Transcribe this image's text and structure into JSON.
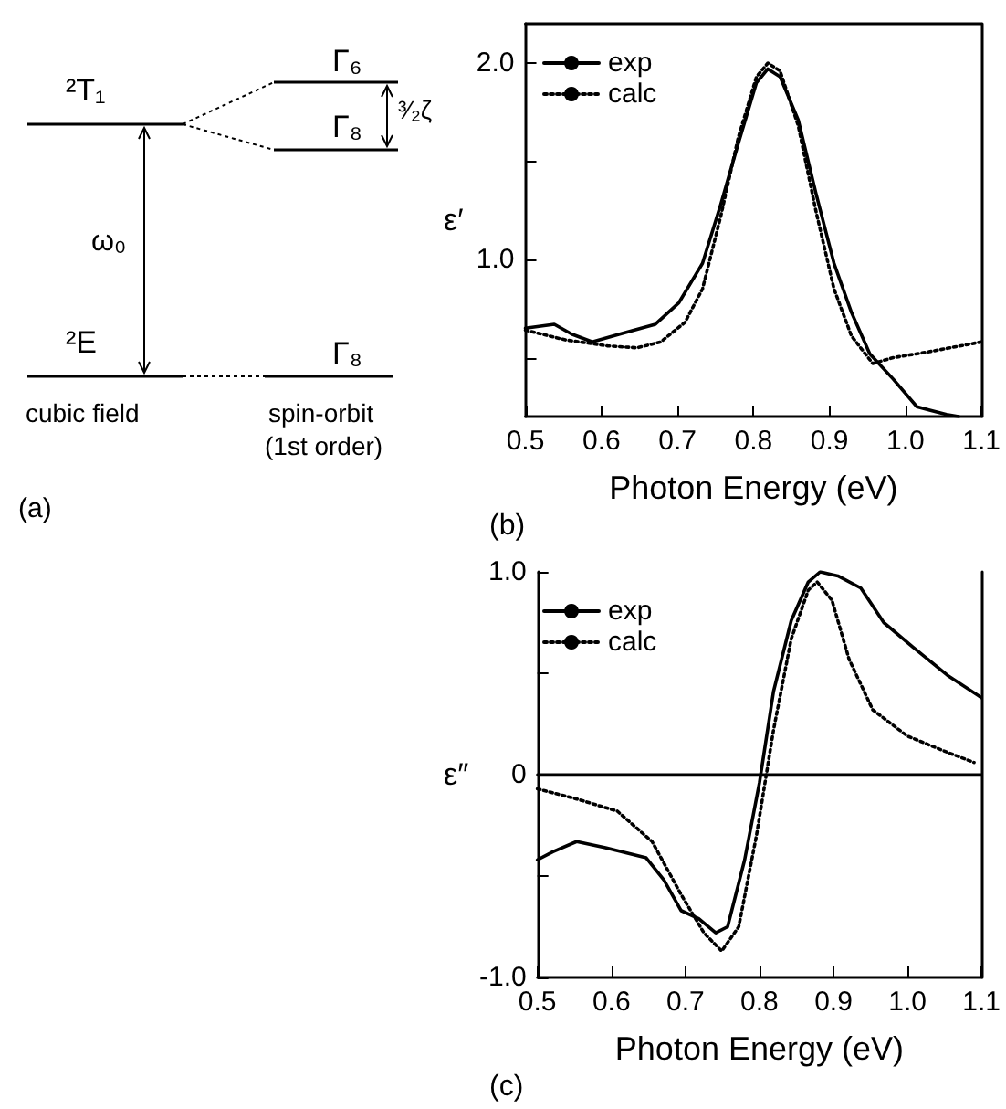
{
  "chart_data": [
    {
      "type": "other",
      "annotations": [
        "²T₁",
        "²E",
        "Γ₆",
        "Γ₈",
        "Γ₈",
        "ω₀",
        "³⁄₂ζ",
        "cubic field",
        "spin-orbit",
        "(1st order)",
        "(a)"
      ]
    },
    {
      "type": "line",
      "xlabel": "Photon Energy (eV)",
      "ylabel": "ε′",
      "annotations": [
        "(b)"
      ],
      "xlim": [
        0.5,
        1.1
      ],
      "xticks": [
        0.5,
        0.6,
        0.7,
        0.8,
        0.9,
        {
          "value": 1.0,
          "label": "1.0"
        },
        1.1
      ],
      "ylim": [
        0.2,
        2.2
      ],
      "yticks": [
        {
          "value": 0.5,
          "label": null
        },
        {
          "value": 1.0,
          "label": "1.0"
        },
        {
          "value": 1.5,
          "label": null
        },
        {
          "value": 2.0,
          "label": "2.0"
        }
      ],
      "legend": "top left",
      "grid": false,
      "marker": "none",
      "series": [
        {
          "name": "exp",
          "color": "#000000",
          "line_style": "solid",
          "x": [
            0.5,
            0.538,
            0.561,
            0.588,
            0.624,
            0.671,
            0.702,
            0.733,
            0.757,
            0.78,
            0.804,
            0.819,
            0.835,
            0.859,
            0.882,
            0.906,
            0.929,
            0.953,
            0.984,
            1.015,
            1.054,
            1.07
          ],
          "values": [
            0.65,
            0.67,
            0.62,
            0.58,
            0.62,
            0.67,
            0.78,
            0.98,
            1.28,
            1.59,
            1.9,
            1.97,
            1.93,
            1.71,
            1.34,
            0.98,
            0.73,
            0.52,
            0.39,
            0.25,
            0.21,
            0.2
          ]
        },
        {
          "name": "calc",
          "color": "#000000",
          "line_style": "dotted",
          "x": [
            0.5,
            0.553,
            0.608,
            0.647,
            0.678,
            0.71,
            0.733,
            0.757,
            0.78,
            0.804,
            0.819,
            0.835,
            0.859,
            0.882,
            0.906,
            0.929,
            0.957,
            0.984,
            1.031,
            1.1
          ],
          "values": [
            0.64,
            0.59,
            0.56,
            0.55,
            0.58,
            0.68,
            0.85,
            1.22,
            1.62,
            1.93,
            2.0,
            1.96,
            1.68,
            1.25,
            0.85,
            0.61,
            0.47,
            0.5,
            0.53,
            0.58
          ]
        }
      ]
    },
    {
      "type": "line",
      "xlabel": "Photon Energy (eV)",
      "ylabel": "ε″",
      "annotations": [
        "(c)"
      ],
      "xlim": [
        0.5,
        1.1
      ],
      "xticks": [
        0.5,
        0.6,
        0.7,
        0.8,
        0.9,
        {
          "value": 1.0,
          "label": "1.0"
        },
        1.1
      ],
      "ylim": [
        -1.0,
        1.0
      ],
      "yticks": [
        {
          "value": -1.0,
          "label": "-1.0"
        },
        {
          "value": -0.5,
          "label": null
        },
        0,
        {
          "value": 0.5,
          "label": null
        },
        {
          "value": 1.0,
          "label": "1.0"
        }
      ],
      "legend": "top left",
      "grid": false,
      "marker": "none",
      "ref_lines": [
        {
          "axis": "y",
          "value": 0,
          "color": "#000000",
          "line_style": "solid"
        }
      ],
      "series": [
        {
          "name": "exp",
          "color": "#000000",
          "line_style": "solid",
          "x": [
            0.5,
            0.521,
            0.553,
            0.592,
            0.647,
            0.671,
            0.694,
            0.718,
            0.741,
            0.757,
            0.78,
            0.8,
            0.819,
            0.843,
            0.866,
            0.882,
            0.906,
            0.937,
            0.968,
            1.007,
            1.054,
            1.1
          ],
          "values": [
            -0.42,
            -0.38,
            -0.33,
            -0.36,
            -0.41,
            -0.52,
            -0.67,
            -0.71,
            -0.78,
            -0.75,
            -0.42,
            -0.04,
            0.41,
            0.76,
            0.95,
            1.0,
            0.98,
            0.92,
            0.75,
            0.63,
            0.49,
            0.38
          ]
        },
        {
          "name": "calc",
          "color": "#000000",
          "line_style": "dotted",
          "x": [
            0.5,
            0.553,
            0.608,
            0.655,
            0.694,
            0.725,
            0.749,
            0.772,
            0.796,
            0.819,
            0.843,
            0.866,
            0.878,
            0.898,
            0.921,
            0.953,
            1.0,
            1.054,
            1.09
          ],
          "values": [
            -0.07,
            -0.12,
            -0.18,
            -0.33,
            -0.59,
            -0.78,
            -0.87,
            -0.75,
            -0.3,
            0.22,
            0.67,
            0.91,
            0.95,
            0.86,
            0.57,
            0.32,
            0.19,
            0.11,
            0.06
          ]
        }
      ]
    }
  ]
}
